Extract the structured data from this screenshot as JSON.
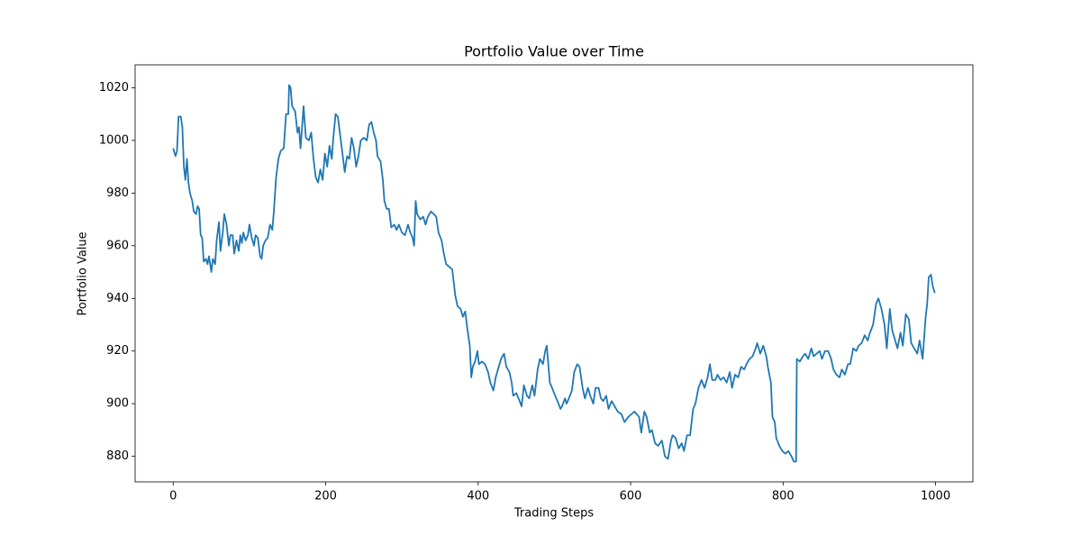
{
  "chart_data": {
    "type": "line",
    "title": "Portfolio Value over Time",
    "x_label": "Trading Steps",
    "y_label": "Portfolio Value",
    "color": "#1f77b4",
    "xlim": [
      -49.95,
      1048.95
    ],
    "ylim": [
      870.3,
      1028.7
    ],
    "xticks": [
      0,
      200,
      400,
      600,
      800,
      1000
    ],
    "yticks": [
      880,
      900,
      920,
      940,
      960,
      980,
      1000,
      1020
    ],
    "x": [
      0,
      3,
      5,
      7,
      10,
      12,
      14,
      16,
      18,
      20,
      22,
      25,
      27,
      30,
      32,
      34,
      36,
      38,
      40,
      43,
      45,
      47,
      50,
      52,
      55,
      57,
      60,
      62,
      65,
      67,
      70,
      73,
      75,
      78,
      80,
      83,
      86,
      88,
      90,
      92,
      95,
      98,
      100,
      103,
      106,
      108,
      111,
      114,
      116,
      118,
      121,
      124,
      127,
      130,
      132,
      135,
      138,
      141,
      145,
      148,
      151,
      152,
      154,
      156,
      160,
      163,
      165,
      167,
      169,
      171,
      174,
      178,
      181,
      184,
      187,
      190,
      193,
      196,
      199,
      202,
      205,
      208,
      210,
      213,
      216,
      219,
      222,
      225,
      228,
      231,
      234,
      237,
      240,
      243,
      246,
      250,
      254,
      257,
      260,
      263,
      266,
      268,
      272,
      275,
      277,
      280,
      283,
      286,
      290,
      293,
      296,
      300,
      304,
      308,
      311,
      314,
      316,
      318,
      320,
      324,
      328,
      331,
      334,
      338,
      342,
      345,
      348,
      352,
      355,
      358,
      362,
      366,
      370,
      373,
      377,
      380,
      383,
      386,
      389,
      391,
      393,
      396,
      399,
      401,
      405,
      409,
      413,
      416,
      420,
      423,
      427,
      430,
      434,
      437,
      441,
      444,
      446,
      450,
      453,
      457,
      460,
      464,
      467,
      471,
      474,
      478,
      481,
      485,
      488,
      490,
      494,
      497,
      501,
      504,
      508,
      510,
      514,
      516,
      519,
      523,
      526,
      530,
      533,
      537,
      540,
      544,
      547,
      551,
      554,
      558,
      561,
      564,
      568,
      571,
      575,
      579,
      583,
      588,
      592,
      597,
      601,
      605,
      611,
      614,
      618,
      621,
      625,
      628,
      632,
      636,
      641,
      645,
      649,
      653,
      655,
      659,
      663,
      667,
      670,
      674,
      678,
      682,
      685,
      689,
      693,
      697,
      701,
      704,
      707,
      711,
      714,
      718,
      722,
      726,
      730,
      733,
      737,
      741,
      745,
      749,
      752,
      756,
      760,
      764,
      766,
      770,
      774,
      778,
      780,
      784,
      786,
      789,
      791,
      795,
      799,
      803,
      807,
      811,
      814,
      817,
      818,
      822,
      826,
      829,
      833,
      837,
      840,
      844,
      848,
      851,
      855,
      859,
      863,
      866,
      870,
      874,
      877,
      881,
      885,
      888,
      892,
      896,
      899,
      903,
      907,
      911,
      914,
      918,
      922,
      925,
      929,
      933,
      936,
      940,
      943,
      946,
      950,
      954,
      957,
      961,
      965,
      968,
      972,
      976,
      979,
      983,
      987,
      989,
      991,
      994,
      996,
      999
    ],
    "values": [
      997,
      994,
      996,
      1009,
      1009,
      1005,
      990,
      985,
      993,
      984,
      980,
      977,
      973,
      972,
      975,
      974,
      964,
      963,
      954,
      955,
      953,
      956,
      950,
      955,
      953,
      962,
      969,
      958,
      965,
      972,
      968,
      960,
      964,
      964,
      957,
      962,
      958,
      964,
      961,
      965,
      962,
      964,
      968,
      963,
      960,
      964,
      963,
      956,
      955,
      960,
      962,
      963,
      968,
      966,
      973,
      986,
      993,
      996,
      997,
      1010,
      1010,
      1021,
      1020,
      1013,
      1011,
      1003,
      1005,
      997,
      1005,
      1013,
      1001,
      1000,
      1003,
      993,
      986,
      984,
      989,
      985,
      995,
      990,
      998,
      993,
      1001,
      1010,
      1009,
      1002,
      995,
      988,
      994,
      993,
      1001,
      997,
      990,
      994,
      1000,
      1001,
      1000,
      1006,
      1007,
      1003,
      1000,
      994,
      992,
      985,
      977,
      974,
      974,
      967,
      968,
      966,
      968,
      965,
      964,
      968,
      965,
      963,
      960,
      977,
      972,
      970,
      971,
      968,
      971,
      973,
      972,
      971,
      965,
      962,
      957,
      953,
      952,
      951,
      941,
      937,
      936,
      933,
      935,
      928,
      922,
      910,
      914,
      916,
      920,
      915,
      916,
      915,
      912,
      908,
      905,
      910,
      914,
      917,
      919,
      914,
      912,
      908,
      903,
      904,
      902,
      899,
      907,
      903,
      902,
      907,
      903,
      913,
      917,
      915,
      920,
      922,
      908,
      906,
      903,
      901,
      898,
      899,
      902,
      900,
      902,
      905,
      912,
      915,
      914,
      906,
      902,
      906,
      903,
      900,
      906,
      906,
      902,
      901,
      903,
      898,
      901,
      899,
      897,
      896,
      893,
      895,
      896,
      897,
      895,
      889,
      897,
      895,
      889,
      890,
      885,
      884,
      886,
      880,
      879,
      886,
      888,
      887,
      883,
      885,
      882,
      888,
      888,
      898,
      900,
      906,
      909,
      906,
      910,
      915,
      909,
      909,
      911,
      909,
      910,
      908,
      912,
      906,
      911,
      910,
      914,
      913,
      915,
      917,
      918,
      921,
      923,
      919,
      922,
      918,
      914,
      908,
      895,
      893,
      887,
      884,
      882,
      881,
      882,
      880,
      878,
      878,
      917,
      916,
      918,
      919,
      917,
      921,
      918,
      919,
      920,
      917,
      920,
      920,
      917,
      913,
      911,
      910,
      913,
      911,
      915,
      915,
      921,
      920,
      922,
      923,
      926,
      924,
      927,
      930,
      938,
      940,
      936,
      930,
      921,
      936,
      928,
      925,
      921,
      927,
      922,
      934,
      932,
      923,
      921,
      919,
      924,
      917,
      933,
      938,
      948,
      949,
      945,
      942
    ]
  }
}
